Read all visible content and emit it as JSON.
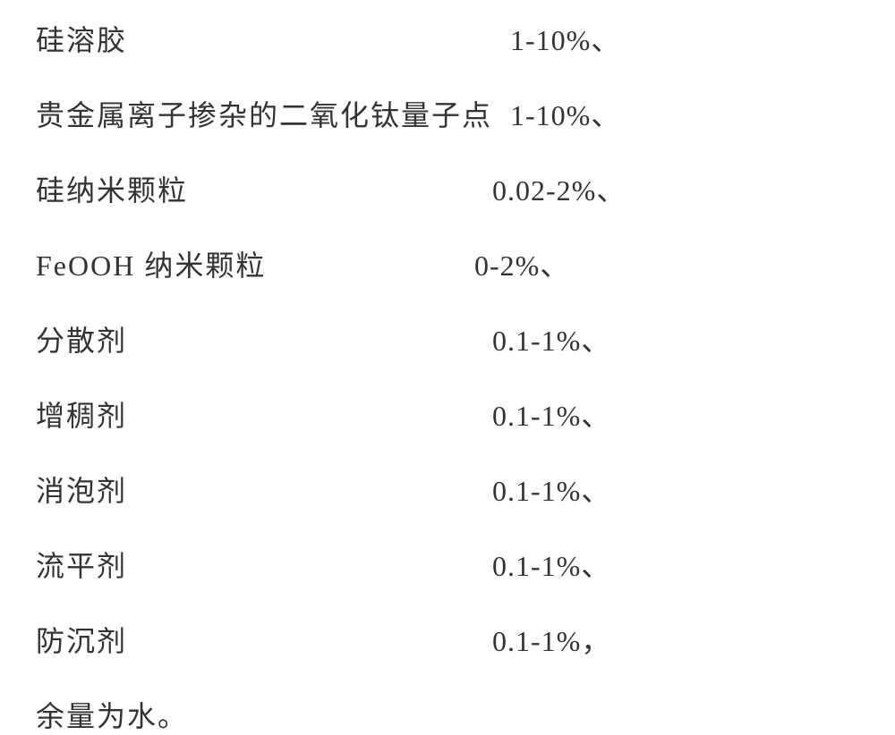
{
  "rows": [
    {
      "label": "硅溶胶",
      "value": "1-10%、",
      "label_width": 530,
      "value_margin": 0
    },
    {
      "label": "贵金属离子掺杂的二氧化钛量子点",
      "value": "1-10%、",
      "label_width": 530,
      "value_margin": 0
    },
    {
      "label": "硅纳米颗粒",
      "value": "0.02-2%、",
      "label_width": 510,
      "value_margin": 0
    },
    {
      "label": "FeOOH 纳米颗粒",
      "value": "0-2%、",
      "label_width": 490,
      "value_margin": 0
    },
    {
      "label": "分散剂",
      "value": "0.1-1%、",
      "label_width": 510,
      "value_margin": 0
    },
    {
      "label": "增稠剂",
      "value": "0.1-1%、",
      "label_width": 510,
      "value_margin": 0
    },
    {
      "label": "消泡剂",
      "value": "0.1-1%、",
      "label_width": 510,
      "value_margin": 0
    },
    {
      "label": "流平剂",
      "value": "0.1-1%、",
      "label_width": 510,
      "value_margin": 0
    },
    {
      "label": "防沉剂",
      "value": "0.1-1%，",
      "label_width": 510,
      "value_margin": 0
    }
  ],
  "footer": "余量为水。",
  "styling": {
    "font_size": 32,
    "line_height": 1.4,
    "text_color": "#333333",
    "background_color": "#ffffff",
    "row_gap": 38
  }
}
